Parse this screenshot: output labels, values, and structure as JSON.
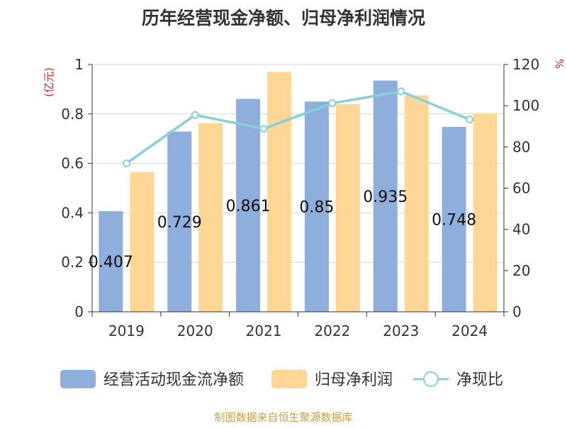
{
  "chart_data": {
    "type": "bar",
    "title": "历年经营现金净额、归母净利润情况",
    "categories": [
      "2019",
      "2020",
      "2021",
      "2022",
      "2023",
      "2024"
    ],
    "series": [
      {
        "name": "经营活动现金流净额",
        "kind": "bar",
        "axis": "left",
        "color": "#8eaedb",
        "values": [
          0.407,
          0.729,
          0.861,
          0.85,
          0.935,
          0.748
        ]
      },
      {
        "name": "归母净利润",
        "kind": "bar",
        "axis": "left",
        "color": "#fed797",
        "values": [
          0.565,
          0.763,
          0.97,
          0.84,
          0.875,
          0.802
        ]
      },
      {
        "name": "净现比",
        "kind": "line",
        "axis": "right",
        "color": "#88d0d6",
        "values": [
          72.0,
          95.5,
          88.8,
          101.2,
          106.9,
          93.3
        ]
      }
    ],
    "data_labels": [
      "0.407",
      "0.729",
      "0.861",
      "0.85",
      "0.935",
      "0.748"
    ],
    "y_left": {
      "label": "(亿元)",
      "ylim": [
        0,
        1
      ],
      "ticks": [
        "0",
        "0.2",
        "0.4",
        "0.6",
        "0.8",
        "1"
      ]
    },
    "y_right": {
      "label": "%",
      "ylim": [
        0,
        120
      ],
      "ticks": [
        "0",
        "20",
        "40",
        "60",
        "80",
        "100",
        "120"
      ]
    },
    "grid": true,
    "legend": "bottom"
  },
  "footer": {
    "source": "制图数据来自恒生聚源数据库"
  }
}
